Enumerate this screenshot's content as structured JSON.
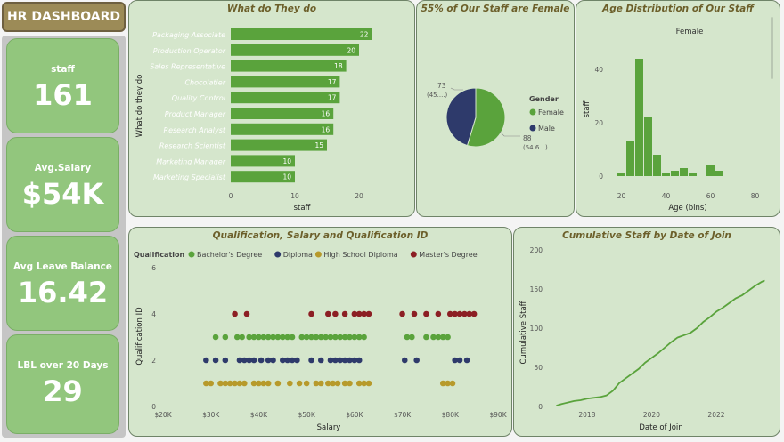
{
  "header": {
    "title": "HR DASHBOARD"
  },
  "kpis": [
    {
      "label": "staff",
      "value": "161"
    },
    {
      "label": "Avg.Salary",
      "value": "$54K"
    },
    {
      "label": "Avg Leave Balance",
      "value": "16.42"
    },
    {
      "label": "LBL over 20 Days",
      "value": "29"
    }
  ],
  "colors": {
    "green": "#5aa33c",
    "navy": "#2e3a6b",
    "gold": "#b79a2b",
    "maroon": "#8c1f24",
    "title": "#6c5f2a"
  },
  "chart_data": [
    {
      "type": "bar",
      "orientation": "horizontal",
      "title": "What do They do",
      "xlabel": "staff",
      "ylabel": "What do they do",
      "xlim": [
        0,
        25
      ],
      "xticks": [
        0,
        10,
        20
      ],
      "categories": [
        "Packaging Associate",
        "Production Operator",
        "Sales Representative",
        "Chocolatier",
        "Quality Control",
        "Product Manager",
        "Research Analyst",
        "Research Scientist",
        "Marketing Manager",
        "Marketing Specialist"
      ],
      "values": [
        22,
        20,
        18,
        17,
        17,
        16,
        16,
        15,
        10,
        10
      ]
    },
    {
      "type": "pie",
      "title": "55% of Our Staff are Female",
      "legend_title": "Gender",
      "slices": [
        {
          "name": "Female",
          "value": 88,
          "label": "88",
          "pct_label": "(54.6...)"
        },
        {
          "name": "Male",
          "value": 73,
          "label": "73",
          "pct_label": "(45....)"
        }
      ]
    },
    {
      "type": "bar",
      "subtype": "histogram",
      "title": "Age Distribution of Our Staff",
      "subtitle": "Female",
      "xlabel": "Age (bins)",
      "ylabel": "staff",
      "xlim": [
        15,
        85
      ],
      "ylim": [
        0,
        45
      ],
      "xticks": [
        20,
        40,
        60,
        80
      ],
      "yticks": [
        0,
        20,
        40
      ],
      "bins": [
        {
          "x": 20,
          "value": 1
        },
        {
          "x": 24,
          "value": 13
        },
        {
          "x": 28,
          "value": 44
        },
        {
          "x": 32,
          "value": 22
        },
        {
          "x": 36,
          "value": 8
        },
        {
          "x": 40,
          "value": 1
        },
        {
          "x": 44,
          "value": 2
        },
        {
          "x": 48,
          "value": 3
        },
        {
          "x": 52,
          "value": 1
        },
        {
          "x": 60,
          "value": 4
        },
        {
          "x": 64,
          "value": 2
        }
      ]
    },
    {
      "type": "scatter",
      "title": "Qualification, Salary and Qualification ID",
      "legend_title": "Qualification",
      "xlabel": "Salary",
      "ylabel": "Qualification ID",
      "xlim": [
        20000,
        90000
      ],
      "ylim": [
        0,
        6
      ],
      "xticks": [
        "$20K",
        "$30K",
        "$40K",
        "$50K",
        "$60K",
        "$70K",
        "$80K",
        "$90K"
      ],
      "yticks": [
        0,
        2,
        4,
        6
      ],
      "series": [
        {
          "name": "Bachelor's Degree",
          "y": 3,
          "x": [
            31000,
            33000,
            35500,
            36500,
            38000,
            39000,
            40000,
            41000,
            42000,
            43000,
            44000,
            45000,
            46000,
            47000,
            49000,
            50000,
            51000,
            52000,
            53000,
            54000,
            55000,
            56000,
            57000,
            58000,
            59000,
            60000,
            61000,
            62000,
            71000,
            72000,
            75000,
            76500,
            77500,
            78500,
            79500
          ]
        },
        {
          "name": "Diploma",
          "y": 2,
          "x": [
            29000,
            31000,
            33000,
            36000,
            37000,
            38000,
            39000,
            40500,
            42000,
            43000,
            45000,
            46000,
            47000,
            48000,
            51000,
            53000,
            55000,
            56000,
            57000,
            58000,
            59000,
            60000,
            61000,
            70500,
            73000,
            81000,
            82000,
            83500
          ]
        },
        {
          "name": "High School Diploma",
          "y": 1,
          "x": [
            29000,
            30000,
            32000,
            33000,
            34000,
            35000,
            36000,
            37000,
            39000,
            40000,
            41000,
            42000,
            44000,
            46500,
            48500,
            50000,
            52000,
            53000,
            54500,
            55500,
            56500,
            58000,
            59000,
            61000,
            62000,
            63000,
            78500,
            79500,
            80500
          ]
        },
        {
          "name": "Master's Degree",
          "y": 4,
          "x": [
            35000,
            37500,
            51000,
            54500,
            56000,
            58000,
            60000,
            61000,
            62000,
            63000,
            70000,
            72500,
            75000,
            77500,
            80000,
            81000,
            82000,
            83000,
            84000,
            85000
          ]
        }
      ]
    },
    {
      "type": "line",
      "title": "Cumulative Staff by Date of Join",
      "xlabel": "Date of Join",
      "ylabel": "Cumulative Staff",
      "xlim": [
        2016.9,
        2023.6
      ],
      "ylim": [
        0,
        200
      ],
      "xticks": [
        2018,
        2020,
        2022
      ],
      "yticks": [
        0,
        50,
        100,
        150,
        200
      ],
      "x": [
        2017.05,
        2017.2,
        2017.4,
        2017.6,
        2017.8,
        2018.0,
        2018.2,
        2018.4,
        2018.6,
        2018.8,
        2018.9,
        2019.0,
        2019.2,
        2019.4,
        2019.6,
        2019.8,
        2020.0,
        2020.2,
        2020.4,
        2020.6,
        2020.8,
        2021.0,
        2021.2,
        2021.4,
        2021.6,
        2021.8,
        2022.0,
        2022.2,
        2022.4,
        2022.6,
        2022.8,
        2023.0,
        2023.2,
        2023.4,
        2023.5
      ],
      "y": [
        1,
        3,
        5,
        7,
        8,
        10,
        11,
        12,
        14,
        20,
        25,
        30,
        36,
        42,
        48,
        56,
        62,
        68,
        75,
        82,
        88,
        91,
        94,
        100,
        108,
        114,
        121,
        126,
        132,
        138,
        142,
        148,
        154,
        159,
        161
      ]
    }
  ]
}
